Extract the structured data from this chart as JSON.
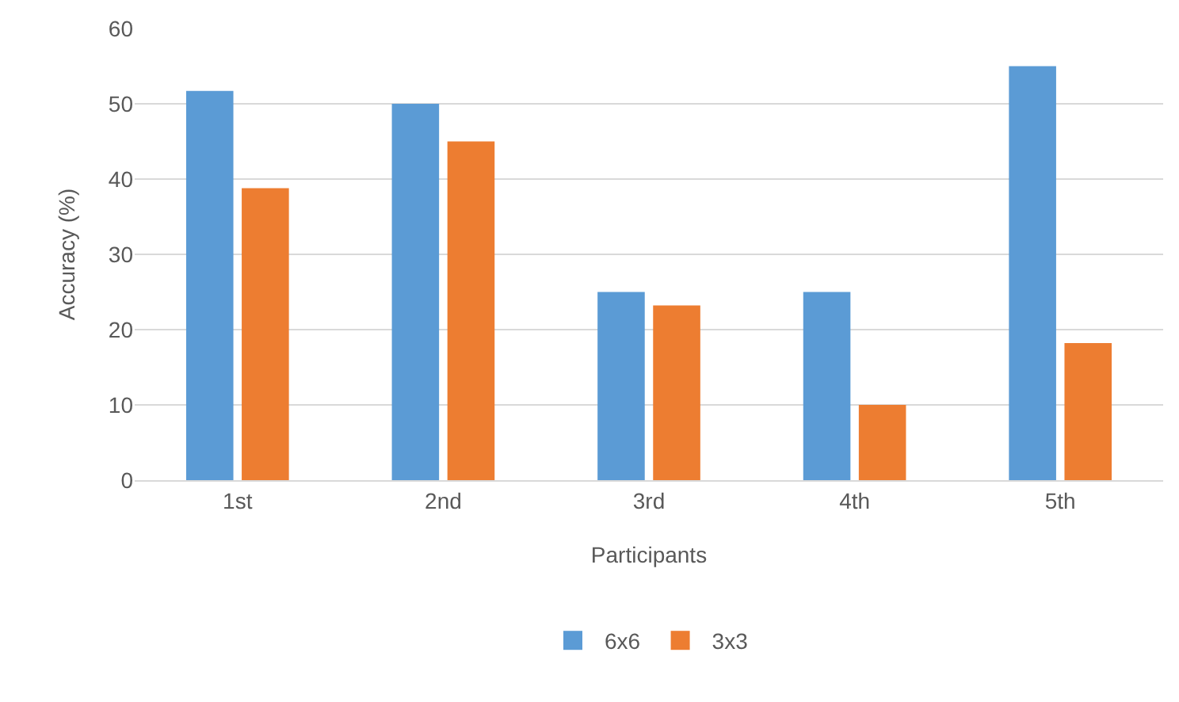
{
  "chart_data": {
    "type": "bar",
    "xlabel": "Participants",
    "ylabel": "Accuracy (%)",
    "categories": [
      "1st",
      "2nd",
      "3rd",
      "4th",
      "5th"
    ],
    "series": [
      {
        "name": "6x6",
        "color": "#5b9bd5",
        "values": [
          51.7,
          50,
          25,
          25,
          55
        ]
      },
      {
        "name": "3x3",
        "color": "#ed7d31",
        "values": [
          38.8,
          45,
          23.2,
          10,
          18.2
        ]
      }
    ],
    "ylim": [
      0,
      60
    ],
    "yticks": [
      0,
      10,
      20,
      30,
      40,
      50,
      60
    ],
    "grid": "y",
    "legend": "bottom"
  }
}
